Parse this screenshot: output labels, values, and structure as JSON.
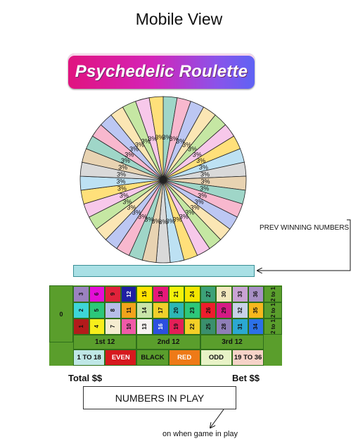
{
  "page": {
    "title": "Mobile View"
  },
  "logo": {
    "text": "Psychedelic Roulette"
  },
  "wheel": {
    "slice_label": "3%",
    "slice_count": 37,
    "slice_colors": [
      "#9fd6c8",
      "#f8b8ce",
      "#bcc7f3",
      "#fbe6b4",
      "#c5e7a3",
      "#f7c8ea",
      "#ffe07a",
      "#bde1f3",
      "#d9d9d9",
      "#e8d3b2"
    ]
  },
  "prev_winning": {
    "label": "PREV WINNING NUMBERS"
  },
  "board": {
    "zero": "0",
    "rows": [
      [
        {
          "n": "3",
          "bg": "#9b82c0"
        },
        {
          "n": "6",
          "bg": "#e40fd6"
        },
        {
          "n": "9",
          "bg": "#e1223a"
        },
        {
          "n": "12",
          "bg": "#1f1fa3",
          "fg": "#ffffff"
        },
        {
          "n": "15",
          "bg": "#ffe400"
        },
        {
          "n": "18",
          "bg": "#e7187a"
        },
        {
          "n": "21",
          "bg": "#f4f20a"
        },
        {
          "n": "24",
          "bg": "#f4e600"
        },
        {
          "n": "27",
          "bg": "#3ca178"
        },
        {
          "n": "30",
          "bg": "#f2e8be"
        },
        {
          "n": "33",
          "bg": "#c9a3d4"
        },
        {
          "n": "36",
          "bg": "#a78fc4"
        }
      ],
      [
        {
          "n": "2",
          "bg": "#3dd6d8"
        },
        {
          "n": "5",
          "bg": "#2cc77a"
        },
        {
          "n": "8",
          "bg": "#b6bde8"
        },
        {
          "n": "11",
          "bg": "#f2a31b"
        },
        {
          "n": "14",
          "bg": "#c9e4a8"
        },
        {
          "n": "17",
          "bg": "#f0d02a"
        },
        {
          "n": "20",
          "bg": "#2cb7b5"
        },
        {
          "n": "23",
          "bg": "#2cc77a"
        },
        {
          "n": "26",
          "bg": "#ef1d2c"
        },
        {
          "n": "29",
          "bg": "#d61a85"
        },
        {
          "n": "32",
          "bg": "#c8d1e8"
        },
        {
          "n": "35",
          "bg": "#f6b81d"
        }
      ],
      [
        {
          "n": "1",
          "bg": "#b31b1b"
        },
        {
          "n": "4",
          "bg": "#f7ee1b"
        },
        {
          "n": "7",
          "bg": "#f5ecd0"
        },
        {
          "n": "10",
          "bg": "#f05aa8"
        },
        {
          "n": "13",
          "bg": "#f7f3f1"
        },
        {
          "n": "16",
          "bg": "#2c4fe0",
          "fg": "#ffffff"
        },
        {
          "n": "19",
          "bg": "#e41f57"
        },
        {
          "n": "22",
          "bg": "#f4cf27"
        },
        {
          "n": "25",
          "bg": "#3a8f6e"
        },
        {
          "n": "28",
          "bg": "#8f7fb8"
        },
        {
          "n": "31",
          "bg": "#2ba8d2"
        },
        {
          "n": "34",
          "bg": "#2c70e8"
        }
      ]
    ],
    "columns": [
      "2 to 1",
      "2 to 1",
      "2 to 1"
    ],
    "dozens": [
      "1st 12",
      "2nd 12",
      "3rd 12"
    ],
    "bets": [
      {
        "label": "1 TO 18",
        "bg": "#bfe7e6",
        "fg": "#111111"
      },
      {
        "label": "EVEN",
        "bg": "#d6191e",
        "fg": "#ffffff"
      },
      {
        "label": "BLACK",
        "bg": "#5a9e2c",
        "fg": "#111111"
      },
      {
        "label": "RED",
        "bg": "#ee7a17",
        "fg": "#ffffff"
      },
      {
        "label": "ODD",
        "bg": "#e8f3c6",
        "fg": "#111111"
      },
      {
        "label": "19 TO 36",
        "bg": "#f6d3c8",
        "fg": "#111111"
      }
    ]
  },
  "footer": {
    "total_label": "Total $$",
    "bet_label": "Bet $$",
    "numbers_in_play": "NUMBERS IN PLAY",
    "note": "on when game in play"
  }
}
